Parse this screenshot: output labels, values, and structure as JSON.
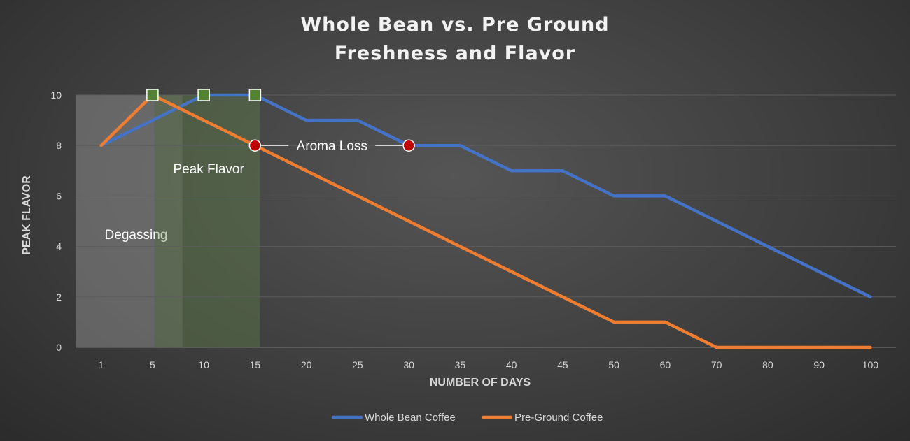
{
  "chart_data": {
    "type": "line",
    "title_lines": [
      "Whole Bean vs. Pre Ground",
      "Freshness and Flavor"
    ],
    "xlabel": "NUMBER OF DAYS",
    "ylabel": "PEAK FLAVOR",
    "categories": [
      "1",
      "5",
      "10",
      "15",
      "20",
      "25",
      "30",
      "35",
      "40",
      "45",
      "50",
      "60",
      "70",
      "80",
      "90",
      "100"
    ],
    "ylim": [
      0,
      10
    ],
    "yticks": [
      0,
      2,
      4,
      6,
      8,
      10
    ],
    "grid": true,
    "legend_position": "bottom",
    "series": [
      {
        "name": "Whole Bean Coffee",
        "color": "#4472c4",
        "values": [
          8,
          9,
          10,
          10,
          9,
          9,
          8,
          8,
          7,
          7,
          6,
          6,
          5,
          4,
          3,
          2
        ]
      },
      {
        "name": "Pre-Ground Coffee",
        "color": "#ed7d31",
        "values": [
          8,
          10,
          9,
          8,
          7,
          6,
          5,
          4,
          3,
          2,
          1,
          1,
          0,
          0,
          0,
          0
        ]
      }
    ],
    "bands": [
      {
        "label": "Degassing",
        "from_day": "1",
        "to_day": "5",
        "color": "#9a9a9a"
      },
      {
        "label": "Peak Flavor",
        "from_day": "5",
        "to_day": "15",
        "color": "#5e7a4a"
      }
    ],
    "peak_markers": [
      {
        "day": "5",
        "value": 10
      },
      {
        "day": "10",
        "value": 10
      },
      {
        "day": "15",
        "value": 10
      }
    ],
    "aroma_loss": {
      "label": "Aroma Loss",
      "points": [
        {
          "day": "15",
          "value": 8
        },
        {
          "day": "30",
          "value": 8
        }
      ]
    },
    "colors": {
      "peak_marker": "#548235",
      "aroma_marker": "#c00000",
      "grid": "#5c5c5c"
    }
  }
}
